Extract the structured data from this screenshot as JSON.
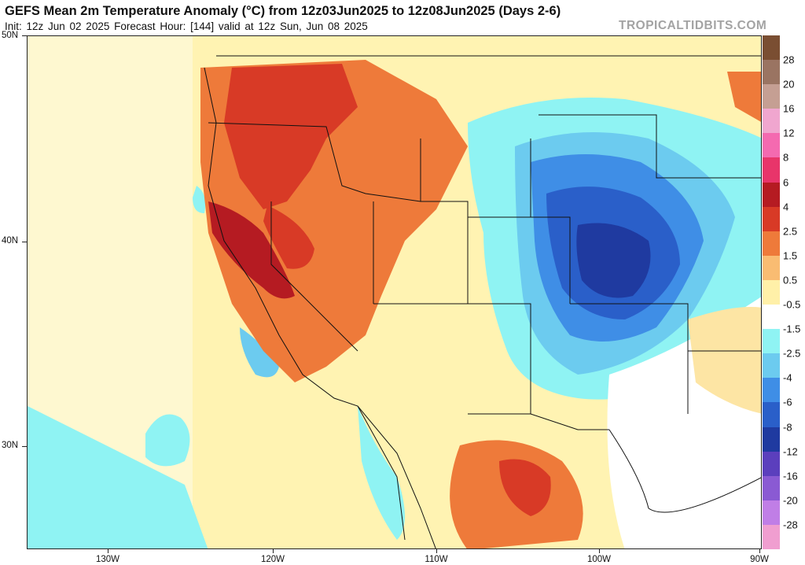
{
  "header": {
    "title": "GEFS Mean 2m Temperature Anomaly (°C) from 12z03Jun2025 to 12z08Jun2025 (Days 2-6)",
    "subtitle": "Init: 12z Jun 02 2025   Forecast Hour: [144]   valid at 12z Sun, Jun 08 2025",
    "brand": "TROPICALTIDBITS.COM"
  },
  "map": {
    "lat_labels": [
      "50N",
      "40N",
      "30N"
    ],
    "lon_labels": [
      "130W",
      "120W",
      "110W",
      "100W",
      "90W"
    ]
  },
  "legend": {
    "labels": [
      "28",
      "20",
      "16",
      "12",
      "8",
      "6",
      "4",
      "2.5",
      "1.5",
      "0.5",
      "-0.5",
      "-1.5",
      "-2.5",
      "-4",
      "-6",
      "-8",
      "-12",
      "-16",
      "-20",
      "-28"
    ],
    "colors": [
      "#7a4e32",
      "#9a7462",
      "#c59f93",
      "#f0a6cf",
      "#f46ab0",
      "#e8356a",
      "#b51b22",
      "#d83a26",
      "#ee7a3a",
      "#f9bc72",
      "#fff0a8",
      "#ffffff",
      "#8ff3f3",
      "#6ccbef",
      "#3f8ee6",
      "#2a5fc9",
      "#1f3aa0",
      "#5b3fbd",
      "#8a5ad3",
      "#c07ee6",
      "#f09ed0"
    ]
  }
}
